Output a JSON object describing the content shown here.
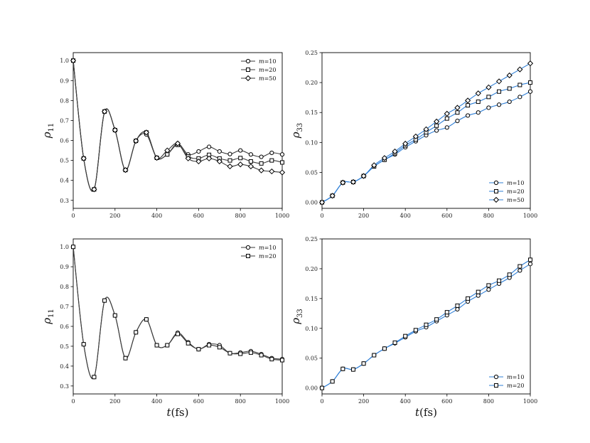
{
  "colors": {
    "black_series": "#3a3a3a",
    "blue_series": "#2f7fd6",
    "marker_edge": "#000000"
  },
  "chart_data": [
    {
      "type": "line",
      "panel": "top-left",
      "ylabel_main": "ρ",
      "ylabel_sub": "11",
      "xlabel": "",
      "xlim": [
        0,
        1000
      ],
      "ylim": [
        0.26,
        1.04
      ],
      "xticks": [
        0,
        200,
        400,
        600,
        800,
        1000
      ],
      "yticks": [
        0.3,
        0.4,
        0.5,
        0.6,
        0.7,
        0.8,
        0.9,
        1.0
      ],
      "ytick_labels": [
        "0.3",
        "0.4",
        "0.5",
        "0.6",
        "0.7",
        "0.8",
        "0.9",
        "1.0"
      ],
      "legend_position": "top-right",
      "legend_var": "m",
      "line_color": "#3a3a3a",
      "series": [
        {
          "name": "=10",
          "marker": "circle",
          "x": [
            0,
            50,
            100,
            150,
            200,
            250,
            300,
            350,
            400,
            450,
            500,
            550,
            600,
            650,
            700,
            750,
            800,
            850,
            900,
            950,
            1000
          ],
          "y": [
            1.0,
            0.51,
            0.355,
            0.745,
            0.652,
            0.452,
            0.598,
            0.63,
            0.513,
            0.53,
            0.585,
            0.53,
            0.545,
            0.568,
            0.545,
            0.532,
            0.55,
            0.53,
            0.518,
            0.538,
            0.53
          ]
        },
        {
          "name": "=20",
          "marker": "square",
          "x": [
            0,
            50,
            100,
            150,
            200,
            250,
            300,
            350,
            400,
            450,
            500,
            550,
            600,
            650,
            700,
            750,
            800,
            850,
            900,
            950,
            1000
          ],
          "y": [
            1.0,
            0.51,
            0.355,
            0.745,
            0.652,
            0.452,
            0.598,
            0.64,
            0.513,
            0.53,
            0.578,
            0.52,
            0.51,
            0.528,
            0.51,
            0.5,
            0.512,
            0.495,
            0.485,
            0.5,
            0.49
          ]
        },
        {
          "name": "=50",
          "marker": "diamond",
          "x": [
            0,
            50,
            100,
            150,
            200,
            250,
            300,
            350,
            400,
            450,
            500,
            550,
            600,
            650,
            700,
            750,
            800,
            850,
            900,
            950,
            1000
          ],
          "y": [
            1.0,
            0.51,
            0.355,
            0.745,
            0.652,
            0.452,
            0.598,
            0.64,
            0.513,
            0.55,
            0.585,
            0.51,
            0.495,
            0.51,
            0.495,
            0.47,
            0.48,
            0.47,
            0.45,
            0.445,
            0.44
          ]
        }
      ]
    },
    {
      "type": "line",
      "panel": "top-right",
      "ylabel_main": "ρ",
      "ylabel_sub": "33",
      "xlabel": "",
      "xlim": [
        0,
        1000
      ],
      "ylim": [
        -0.01,
        0.25
      ],
      "xticks": [
        0,
        200,
        400,
        600,
        800,
        1000
      ],
      "yticks": [
        0.0,
        0.05,
        0.1,
        0.15,
        0.2,
        0.25
      ],
      "ytick_labels": [
        "0.00",
        "0.05",
        "0.10",
        "0.15",
        "0.20",
        "0.25"
      ],
      "legend_position": "bottom-right",
      "legend_var": "m",
      "line_color": "#2f7fd6",
      "series": [
        {
          "name": "=10",
          "marker": "circle",
          "x": [
            0,
            50,
            100,
            150,
            200,
            250,
            300,
            350,
            400,
            450,
            500,
            550,
            600,
            650,
            700,
            750,
            800,
            850,
            900,
            950,
            1000
          ],
          "y": [
            0.0,
            0.011,
            0.033,
            0.034,
            0.044,
            0.06,
            0.071,
            0.08,
            0.092,
            0.102,
            0.112,
            0.12,
            0.125,
            0.136,
            0.145,
            0.15,
            0.158,
            0.163,
            0.168,
            0.176,
            0.185
          ]
        },
        {
          "name": "=20",
          "marker": "square",
          "x": [
            0,
            50,
            100,
            150,
            200,
            250,
            300,
            350,
            400,
            450,
            500,
            550,
            600,
            650,
            700,
            750,
            800,
            850,
            900,
            950,
            1000
          ],
          "y": [
            0.0,
            0.011,
            0.033,
            0.034,
            0.044,
            0.06,
            0.071,
            0.082,
            0.095,
            0.105,
            0.117,
            0.128,
            0.14,
            0.15,
            0.162,
            0.168,
            0.176,
            0.185,
            0.19,
            0.196,
            0.2
          ]
        },
        {
          "name": "=50",
          "marker": "diamond",
          "x": [
            0,
            50,
            100,
            150,
            200,
            250,
            300,
            350,
            400,
            450,
            500,
            550,
            600,
            650,
            700,
            750,
            800,
            850,
            900,
            950,
            1000
          ],
          "y": [
            0.0,
            0.011,
            0.033,
            0.034,
            0.044,
            0.062,
            0.074,
            0.085,
            0.098,
            0.11,
            0.122,
            0.135,
            0.148,
            0.158,
            0.17,
            0.182,
            0.192,
            0.202,
            0.212,
            0.222,
            0.232
          ]
        }
      ]
    },
    {
      "type": "line",
      "panel": "bottom-left",
      "ylabel_main": "ρ",
      "ylabel_sub": "11",
      "xlabel_main": "t",
      "xlabel_unit": "(fs)",
      "xlim": [
        0,
        1000
      ],
      "ylim": [
        0.26,
        1.04
      ],
      "xticks": [
        0,
        200,
        400,
        600,
        800,
        1000
      ],
      "yticks": [
        0.3,
        0.4,
        0.5,
        0.6,
        0.7,
        0.8,
        0.9,
        1.0
      ],
      "ytick_labels": [
        "0.3",
        "0.4",
        "0.5",
        "0.6",
        "0.7",
        "0.8",
        "0.9",
        "1.0"
      ],
      "legend_position": "top-right",
      "legend_var": "m",
      "line_color": "#3a3a3a",
      "series": [
        {
          "name": "=10",
          "marker": "circle",
          "x": [
            0,
            50,
            100,
            150,
            200,
            250,
            300,
            350,
            400,
            450,
            500,
            550,
            600,
            650,
            700,
            750,
            800,
            850,
            900,
            950,
            1000
          ],
          "y": [
            1.0,
            0.51,
            0.345,
            0.73,
            0.655,
            0.44,
            0.57,
            0.635,
            0.505,
            0.505,
            0.568,
            0.52,
            0.485,
            0.51,
            0.505,
            0.465,
            0.468,
            0.475,
            0.46,
            0.44,
            0.435
          ]
        },
        {
          "name": "=20",
          "marker": "square",
          "x": [
            0,
            50,
            100,
            150,
            200,
            250,
            300,
            350,
            400,
            450,
            500,
            550,
            600,
            650,
            700,
            750,
            800,
            850,
            900,
            950,
            1000
          ],
          "y": [
            1.0,
            0.51,
            0.345,
            0.73,
            0.655,
            0.44,
            0.57,
            0.635,
            0.505,
            0.505,
            0.562,
            0.515,
            0.485,
            0.505,
            0.495,
            0.465,
            0.462,
            0.468,
            0.455,
            0.435,
            0.43
          ]
        }
      ]
    },
    {
      "type": "line",
      "panel": "bottom-right",
      "ylabel_main": "ρ",
      "ylabel_sub": "33",
      "xlabel_main": "t",
      "xlabel_unit": "(fs)",
      "xlim": [
        0,
        1000
      ],
      "ylim": [
        -0.01,
        0.25
      ],
      "xticks": [
        0,
        200,
        400,
        600,
        800,
        1000
      ],
      "yticks": [
        0.0,
        0.05,
        0.1,
        0.15,
        0.2,
        0.25
      ],
      "ytick_labels": [
        "0.00",
        "0.05",
        "0.10",
        "0.15",
        "0.20",
        "0.25"
      ],
      "legend_position": "bottom-right",
      "legend_var": "m",
      "line_color": "#2f7fd6",
      "series": [
        {
          "name": "=10",
          "marker": "circle",
          "x": [
            0,
            50,
            100,
            150,
            200,
            250,
            300,
            350,
            400,
            450,
            500,
            550,
            600,
            650,
            700,
            750,
            800,
            850,
            900,
            950,
            1000
          ],
          "y": [
            0.0,
            0.011,
            0.032,
            0.031,
            0.041,
            0.055,
            0.066,
            0.075,
            0.085,
            0.095,
            0.102,
            0.112,
            0.122,
            0.132,
            0.145,
            0.155,
            0.165,
            0.175,
            0.185,
            0.197,
            0.208
          ]
        },
        {
          "name": "=20",
          "marker": "square",
          "x": [
            0,
            50,
            100,
            150,
            200,
            250,
            300,
            350,
            400,
            450,
            500,
            550,
            600,
            650,
            700,
            750,
            800,
            850,
            900,
            950,
            1000
          ],
          "y": [
            0.0,
            0.011,
            0.032,
            0.031,
            0.041,
            0.055,
            0.066,
            0.076,
            0.087,
            0.097,
            0.106,
            0.115,
            0.127,
            0.138,
            0.15,
            0.161,
            0.172,
            0.18,
            0.19,
            0.204,
            0.215
          ]
        }
      ]
    }
  ]
}
